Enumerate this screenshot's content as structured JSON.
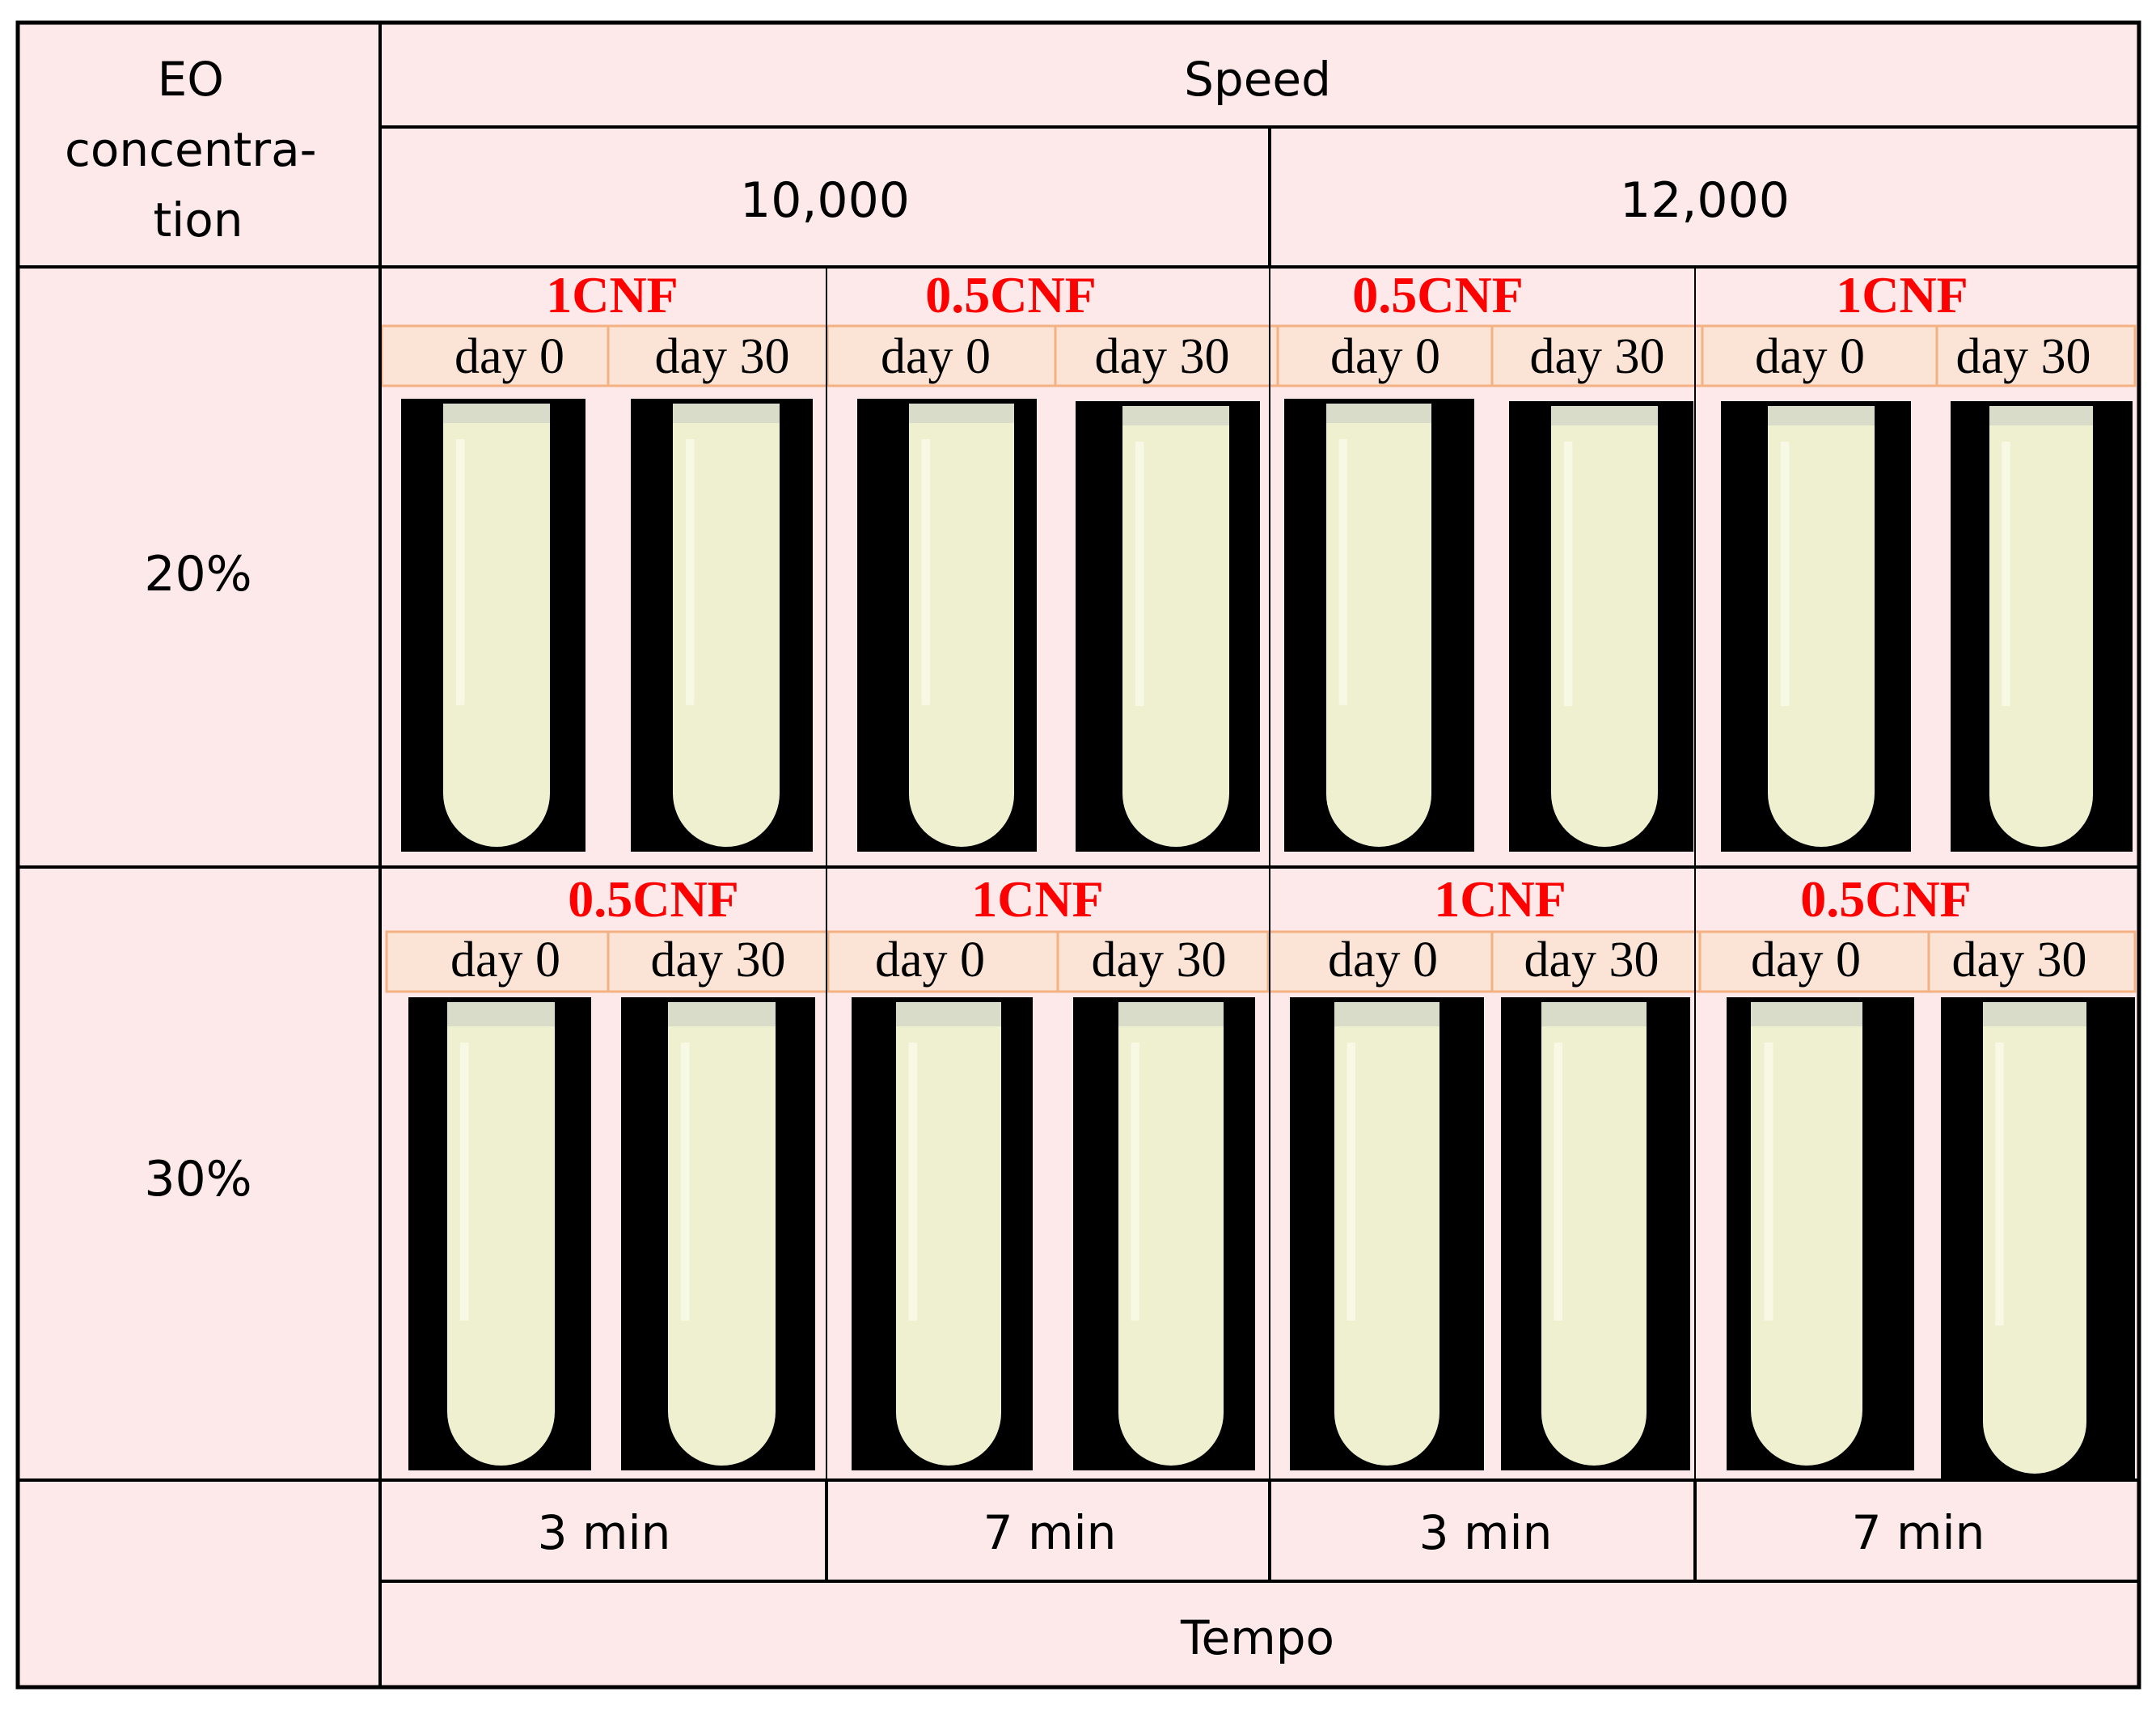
{
  "colors": {
    "cell_bg": "#fde9ea",
    "grid": "#000000",
    "day_bg": "#fbe4d5",
    "day_border": "#f4b183",
    "cnf_text": "#ff0000",
    "tube_bg": "#000000",
    "tube_liquid": "#eef0d0"
  },
  "header": {
    "eo_concentration": "EO concentra-tion",
    "eo_lines": [
      "EO",
      "concentra-",
      "tion"
    ],
    "speed": "Speed",
    "speed_values": [
      "10,000",
      "12,000"
    ]
  },
  "rows": [
    {
      "label": "20%",
      "groups": [
        {
          "cnf": "1CNF",
          "days": [
            "day 0",
            "day 30"
          ]
        },
        {
          "cnf": "0.5CNF",
          "days": [
            "day 0",
            "day 30"
          ]
        },
        {
          "cnf": "0.5CNF",
          "days": [
            "day 0",
            "day 30"
          ]
        },
        {
          "cnf": "1CNF",
          "days": [
            "day 0",
            "day 30"
          ]
        }
      ]
    },
    {
      "label": "30%",
      "groups": [
        {
          "cnf": "0.5CNF",
          "days": [
            "day 0",
            "day 30"
          ]
        },
        {
          "cnf": "1CNF",
          "days": [
            "day 0",
            "day 30"
          ]
        },
        {
          "cnf": "1CNF",
          "days": [
            "day 0",
            "day 30"
          ]
        },
        {
          "cnf": "0.5CNF",
          "days": [
            "day 0",
            "day 30"
          ]
        }
      ]
    }
  ],
  "footer": {
    "tempo_values": [
      "3 min",
      "7 min",
      "3 min",
      "7 min"
    ],
    "tempo": "Tempo"
  }
}
